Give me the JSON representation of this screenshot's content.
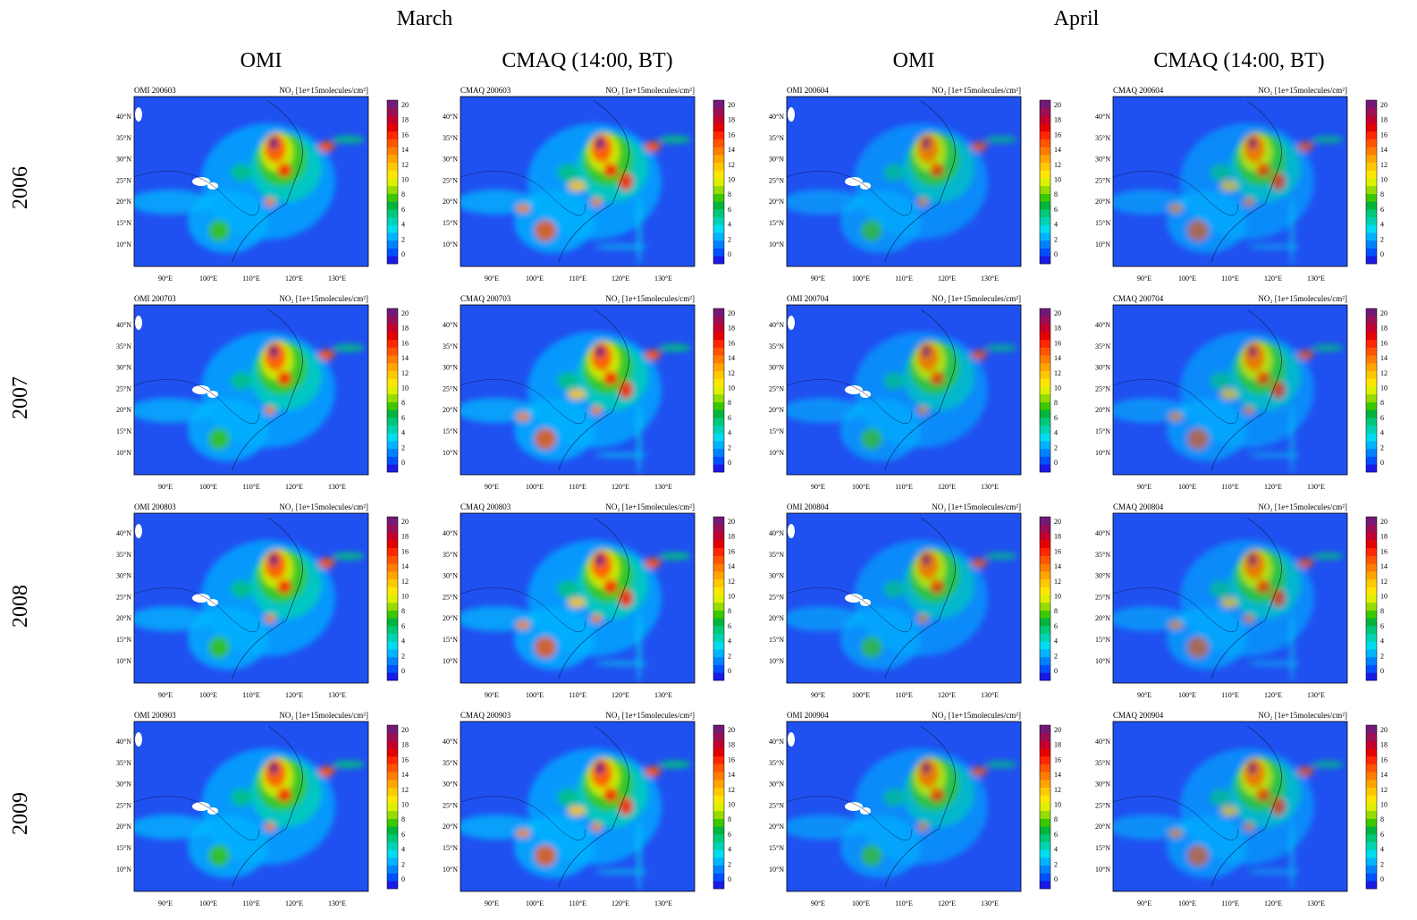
{
  "months": [
    "March",
    "April"
  ],
  "columns": [
    "OMI",
    "CMAQ (14:00, BT)",
    "OMI",
    "CMAQ (14:00, BT)"
  ],
  "years": [
    "2006",
    "2007",
    "2008",
    "2009"
  ],
  "panels": [
    [
      "OMI 200603",
      "CMAQ 200603",
      "OMI 200604",
      "CMAQ 200604"
    ],
    [
      "OMI 200703",
      "CMAQ 200703",
      "OMI 200704",
      "CMAQ 200704"
    ],
    [
      "OMI 200803",
      "CMAQ 200803",
      "OMI 200804",
      "CMAQ 200804"
    ],
    [
      "OMI 200903",
      "CMAQ 200903",
      "OMI 200904",
      "CMAQ 200904"
    ]
  ],
  "unit_label": "NO₂ [1e+15molecules/cm²]",
  "lat_labels": [
    "40°N",
    "35°N",
    "30°N",
    "25°N",
    "20°N",
    "15°N",
    "10°N"
  ],
  "lon_labels": [
    "90°E",
    "100°E",
    "110°E",
    "120°E",
    "130°E"
  ],
  "colorbar": {
    "ticks": [
      0,
      2,
      4,
      6,
      8,
      10,
      12,
      14,
      16,
      18,
      20
    ],
    "colors": [
      "#1a1ae6",
      "#0050ff",
      "#0082ff",
      "#00b4ff",
      "#00dcf0",
      "#00d2b4",
      "#00c878",
      "#00b43c",
      "#3cc800",
      "#96dc00",
      "#dcf000",
      "#ffe600",
      "#ffc800",
      "#ffa500",
      "#ff7d00",
      "#ff5500",
      "#ff2800",
      "#e60000",
      "#c3002d",
      "#9b0f55",
      "#731978"
    ]
  }
}
